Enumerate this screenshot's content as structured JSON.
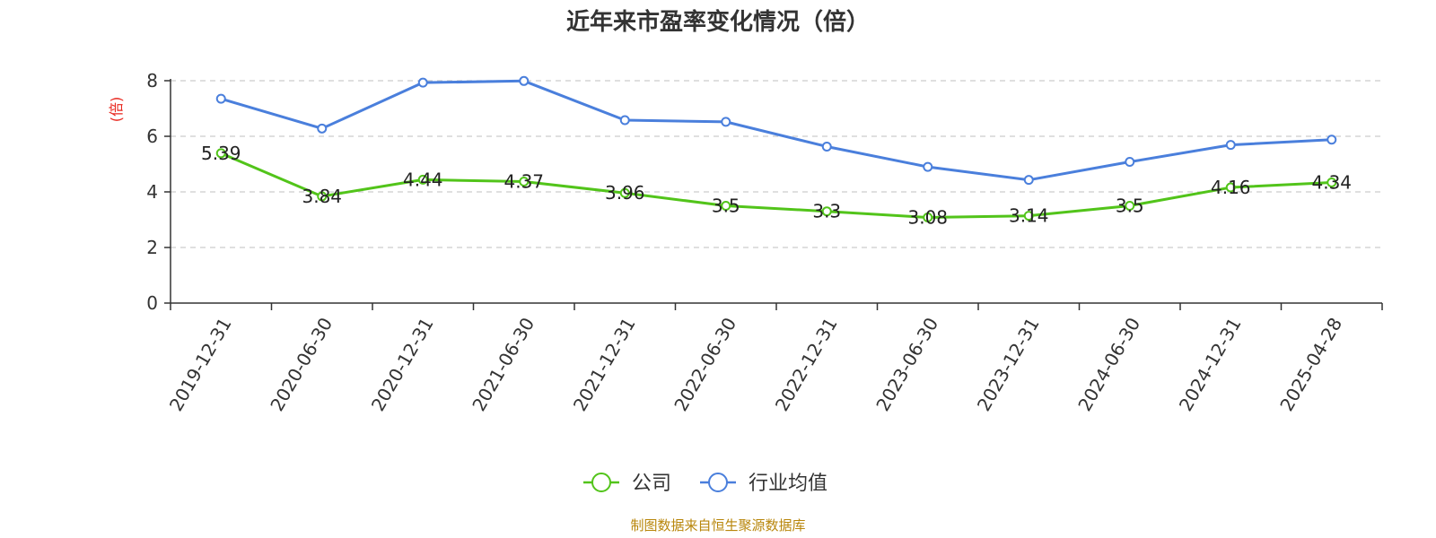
{
  "colors": {
    "company": "#52c41a",
    "industry": "#4a7fdc",
    "unit": "#e8261d",
    "source": "#b8860b",
    "grid": "#cccccc",
    "axis": "#333333"
  },
  "source_text": "制图数据来自恒生聚源数据库",
  "chart_data": {
    "type": "line",
    "title": "近年来市盈率变化情况（倍）",
    "ylabel": "(倍)",
    "xlabel": "",
    "ylim": [
      0,
      8
    ],
    "yticks": [
      0,
      2,
      4,
      6,
      8
    ],
    "grid": true,
    "legend_position": "bottom-center",
    "categories": [
      "2019-12-31",
      "2020-06-30",
      "2020-12-31",
      "2021-06-30",
      "2021-12-31",
      "2022-06-30",
      "2022-12-31",
      "2023-06-30",
      "2023-12-31",
      "2024-06-30",
      "2024-12-31",
      "2025-04-28"
    ],
    "series": [
      {
        "name": "公司",
        "color": "#52c41a",
        "values": [
          5.39,
          3.84,
          4.44,
          4.37,
          3.96,
          3.5,
          3.3,
          3.08,
          3.14,
          3.5,
          4.16,
          4.34
        ],
        "labels": [
          "5.39",
          "3.84",
          "4.44",
          "4.37",
          "3.96",
          "3.5",
          "3.3",
          "3.08",
          "3.14",
          "3.5",
          "4.16",
          "4.34"
        ]
      },
      {
        "name": "行业均值",
        "color": "#4a7fdc",
        "values": [
          7.35,
          6.28,
          7.93,
          7.99,
          6.58,
          6.52,
          5.63,
          4.9,
          4.43,
          5.08,
          5.69,
          5.88
        ]
      }
    ]
  }
}
